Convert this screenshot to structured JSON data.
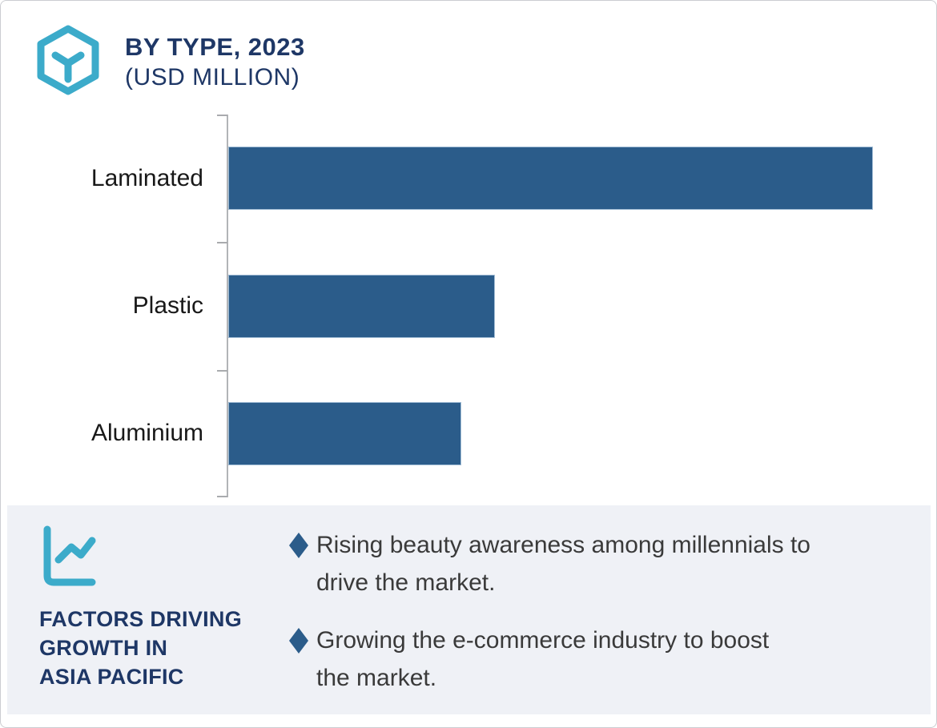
{
  "header": {
    "title": "BY TYPE, 2023",
    "subtitle": "(USD MILLION)",
    "icon": "hexagon-box-icon"
  },
  "colors": {
    "accent_teal": "#3cabca",
    "navy": "#1e3766",
    "bar_blue": "#2b5c8a",
    "panel_bg": "#eff1f6",
    "text_dark": "#3a3a3a",
    "axis_gray": "#b2b4b7",
    "category_label": "#181818"
  },
  "chart_data": {
    "type": "bar",
    "orientation": "horizontal",
    "title": "BY TYPE, 2023 (USD MILLION)",
    "categories": [
      "Laminated",
      "Plastic",
      "Aluminium"
    ],
    "values": [
      100,
      41.4,
      36.1
    ],
    "values_note": "no numeric axis labels shown; values are relative bar lengths estimated from pixels (Laminated = 100)",
    "xlabel": "",
    "ylabel": "",
    "axis_ticks": 4,
    "grid": false,
    "legend": false,
    "bar_color": "#2b5c8a"
  },
  "factors_panel": {
    "icon": "line-chart-icon",
    "heading_lines": [
      "FACTORS DRIVING",
      "GROWTH IN",
      "ASIA PACIFIC"
    ],
    "bullets": [
      {
        "lines": [
          "Rising beauty awareness among millennials to",
          "drive the market."
        ]
      },
      {
        "lines": [
          "Growing the e-commerce industry to boost",
          "the market."
        ]
      }
    ]
  }
}
